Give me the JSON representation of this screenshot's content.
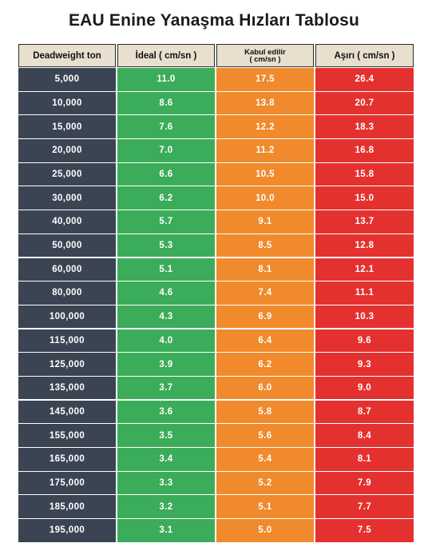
{
  "chart_data": {
    "type": "table",
    "title": "EAU Enine Yanaşma Hızları Tablosu",
    "columns": [
      "Deadweight ton",
      "İdeal ( cm/sn )",
      "Kabul edilir\n( cm/sn )",
      "Aşırı ( cm/sn )"
    ],
    "rows": [
      [
        "5,000",
        "11.0",
        "17.5",
        "26.4"
      ],
      [
        "10,000",
        "8.6",
        "13.8",
        "20.7"
      ],
      [
        "15,000",
        "7.6",
        "12.2",
        "18.3"
      ],
      [
        "20,000",
        "7.0",
        "11.2",
        "16.8"
      ],
      [
        "25,000",
        "6.6",
        "10.5",
        "15.8"
      ],
      [
        "30,000",
        "6.2",
        "10.0",
        "15.0"
      ],
      [
        "40,000",
        "5.7",
        "9.1",
        "13.7"
      ],
      [
        "50,000",
        "5.3",
        "8.5",
        "12.8"
      ],
      [
        "60,000",
        "5.1",
        "8.1",
        "12.1"
      ],
      [
        "80,000",
        "4.6",
        "7.4",
        "11.1"
      ],
      [
        "100,000",
        "4.3",
        "6.9",
        "10.3"
      ],
      [
        "115,000",
        "4.0",
        "6.4",
        "9.6"
      ],
      [
        "125,000",
        "3.9",
        "6.2",
        "9.3"
      ],
      [
        "135,000",
        "3.7",
        "6.0",
        "9.0"
      ],
      [
        "145,000",
        "3.6",
        "5.8",
        "8.7"
      ],
      [
        "155,000",
        "3.5",
        "5.6",
        "8.4"
      ],
      [
        "165,000",
        "3.4",
        "5.4",
        "8.1"
      ],
      [
        "175,000",
        "3.3",
        "5.2",
        "7.9"
      ],
      [
        "185,000",
        "3.2",
        "5.1",
        "7.7"
      ],
      [
        "195,000",
        "3.1",
        "5.0",
        "7.5"
      ]
    ],
    "colors": {
      "header_bg": "#e9dfcf",
      "ton": "#3b4453",
      "ideal": "#3bac59",
      "kabul": "#f08a2c",
      "asiri": "#e4312f"
    }
  }
}
